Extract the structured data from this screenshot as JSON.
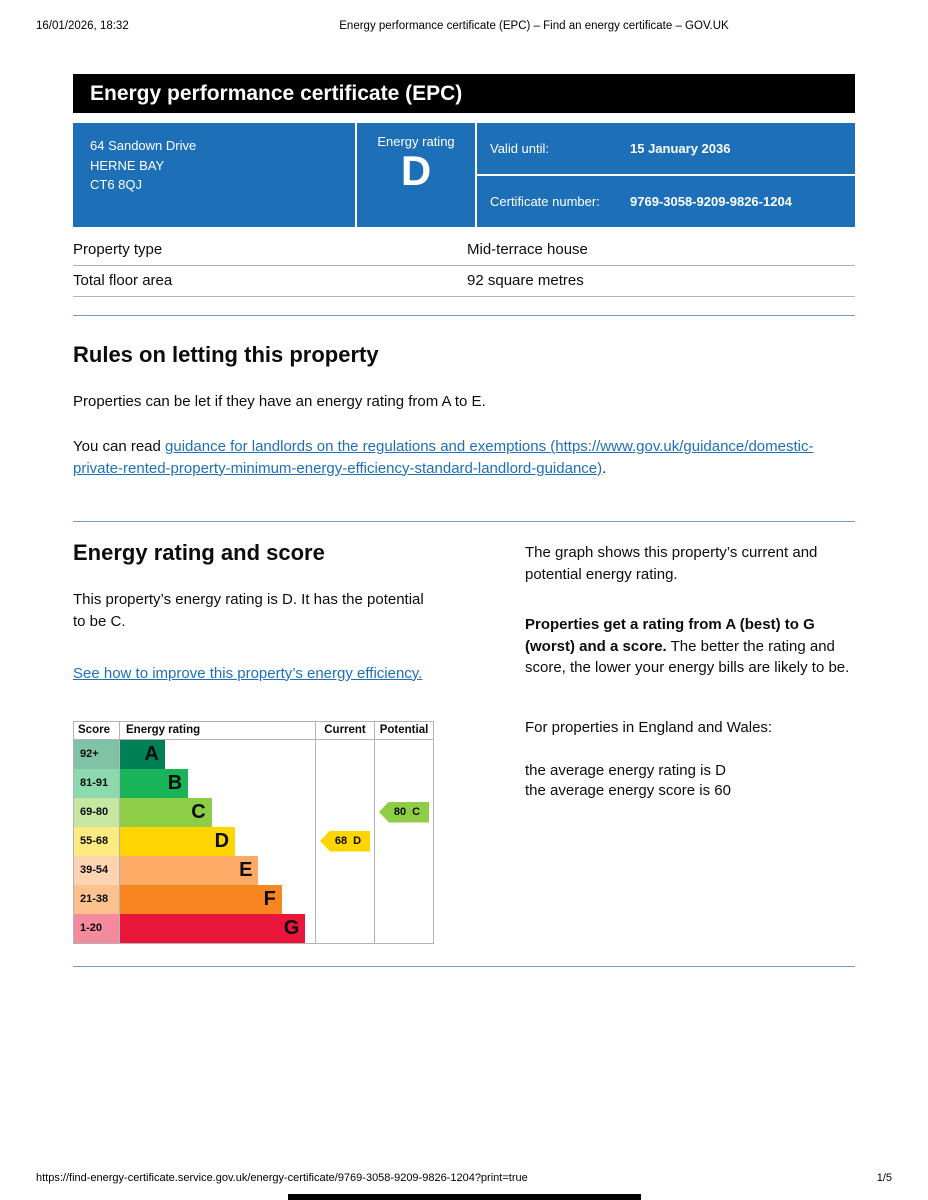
{
  "print_header": {
    "datetime": "16/01/2026, 18:32",
    "title": "Energy performance certificate (EPC) – Find an energy certificate – GOV.UK"
  },
  "banner": {
    "title": "Energy performance certificate (EPC)"
  },
  "summary": {
    "address_lines": [
      "64 Sandown Drive",
      "HERNE BAY",
      "CT6 8QJ"
    ],
    "energy_rating_label": "Energy rating",
    "energy_rating": "D",
    "valid_until_label": "Valid until:",
    "valid_until": "15 January 2036",
    "certificate_number_label": "Certificate number:",
    "certificate_number": "9769-3058-9209-9826-1204"
  },
  "property_table": {
    "rows": [
      {
        "label": "Property type",
        "value": "Mid-terrace house"
      },
      {
        "label": "Total floor area",
        "value": "92 square metres"
      }
    ]
  },
  "rules_section": {
    "heading": "Rules on letting this property",
    "paragraph1": "Properties can be let if they have an energy rating from A to E.",
    "paragraph2_prefix": "You can read ",
    "link_text": "guidance for landlords on the regulations and exemptions (https://www.gov.uk/guidance/domestic-private-rented-property-minimum-energy-efficiency-standard-landlord-guidance)",
    "paragraph2_suffix": "."
  },
  "rating_section": {
    "heading": "Energy rating and score",
    "paragraph1": "This property’s energy rating is D. It has the potential to be C.",
    "improve_link": "See how to improve this property’s energy efficiency.",
    "graph_intro": "The graph shows this property’s current and potential energy rating.",
    "explanation_bold": "Properties get a rating from A (best) to G (worst) and a score.",
    "explanation_rest": " The better the rating and score, the lower your energy bills are likely to be.",
    "england_wales_intro": "For properties in England and Wales:",
    "average_rating_line": "the average energy rating is D",
    "average_score_line": "the average energy score is 60"
  },
  "chart_data": {
    "type": "bar",
    "title": "Energy rating and score graph",
    "headers": [
      "Score",
      "Energy rating",
      "Current",
      "Potential"
    ],
    "bands": [
      {
        "letter": "A",
        "score": "92+",
        "color": "#008054",
        "score_bg": "#7fc2a5",
        "width_pct": 23
      },
      {
        "letter": "B",
        "score": "81-91",
        "color": "#19b459",
        "score_bg": "#8cd9ac",
        "width_pct": 35
      },
      {
        "letter": "C",
        "score": "69-80",
        "color": "#8dce46",
        "score_bg": "#c6e6a2",
        "width_pct": 47
      },
      {
        "letter": "D",
        "score": "55-68",
        "color": "#ffd500",
        "score_bg": "#ffea80",
        "width_pct": 59
      },
      {
        "letter": "E",
        "score": "39-54",
        "color": "#fcaa65",
        "score_bg": "#fdd4b2",
        "width_pct": 71
      },
      {
        "letter": "F",
        "score": "21-38",
        "color": "#f78621",
        "score_bg": "#fbc290",
        "width_pct": 83
      },
      {
        "letter": "G",
        "score": "1-20",
        "color": "#e9153b",
        "score_bg": "#f48a9d",
        "width_pct": 95
      }
    ],
    "current": {
      "score": "68",
      "letter": "D",
      "color": "#ffd500",
      "band_index": 3
    },
    "potential": {
      "score": "80",
      "letter": "C",
      "color": "#8dce46",
      "band_index": 2
    }
  },
  "footer": {
    "url": "https://find-energy-certificate.service.gov.uk/energy-certificate/9769-3058-9209-9826-1204?print=true",
    "page": "1/5"
  }
}
